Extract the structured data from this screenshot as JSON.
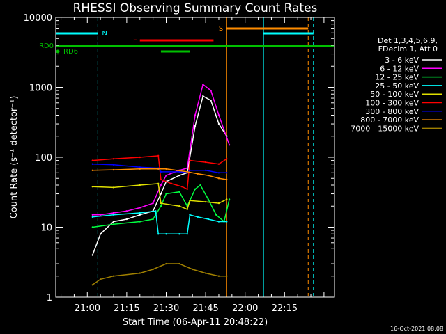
{
  "chart_data": {
    "type": "line",
    "title": "RHESSI Observing Summary Count Rates",
    "xlabel": "Start Time (06-Apr-11 20:48:22)",
    "ylabel": "Count Rate (s⁻¹ detector⁻¹)",
    "yscale": "log",
    "ylim": [
      1,
      10000
    ],
    "xlim": [
      "20:48",
      "22:34"
    ],
    "x_ticks": [
      "21:00",
      "21:15",
      "21:30",
      "21:45",
      "22:00",
      "22:15"
    ],
    "y_ticks": [
      "1",
      "10",
      "100",
      "1000",
      "10000"
    ],
    "legend_header": [
      "Det 1,3,4,5,6,9,",
      "FDecim 1, Att 0"
    ],
    "legend_position": "right",
    "footer": "16-Oct-2021 08:08",
    "series": [
      {
        "name": "3 - 6 keV",
        "color": "#ffffff",
        "x": [
          "21:02",
          "21:05",
          "21:10",
          "21:15",
          "21:20",
          "21:25",
          "21:28",
          "21:30",
          "21:35",
          "21:38",
          "21:41",
          "21:44",
          "21:47",
          "21:50",
          "21:53"
        ],
        "y": [
          4,
          8,
          12,
          13,
          15,
          17,
          30,
          45,
          55,
          60,
          280,
          750,
          650,
          300,
          200
        ]
      },
      {
        "name": "6 - 12 keV",
        "color": "#ff00ff",
        "x": [
          "21:02",
          "21:05",
          "21:10",
          "21:15",
          "21:20",
          "21:25",
          "21:28",
          "21:30",
          "21:35",
          "21:38",
          "21:41",
          "21:44",
          "21:47",
          "21:50",
          "21:54"
        ],
        "y": [
          15,
          15,
          16,
          17,
          19,
          22,
          40,
          55,
          65,
          70,
          400,
          1100,
          900,
          400,
          150
        ]
      },
      {
        "name": "12 - 25 keV",
        "color": "#00ff40",
        "x": [
          "21:02",
          "21:10",
          "21:20",
          "21:25",
          "21:28",
          "21:30",
          "21:35",
          "21:38",
          "21:41",
          "21:43",
          "21:46",
          "21:49",
          "21:52",
          "21:54"
        ],
        "y": [
          10,
          11,
          12,
          13,
          20,
          30,
          32,
          20,
          35,
          40,
          25,
          15,
          12,
          25
        ]
      },
      {
        "name": "25 - 50 keV",
        "color": "#00ffff",
        "x": [
          "21:02",
          "21:10",
          "21:20",
          "21:26",
          "21:27",
          "21:30",
          "21:35",
          "21:38",
          "21:39",
          "21:42",
          "21:46",
          "21:50",
          "21:53"
        ],
        "y": [
          14,
          15,
          16,
          17,
          8,
          8,
          8,
          8,
          15,
          14,
          13,
          12,
          12
        ]
      },
      {
        "name": "50 - 100 keV",
        "color": "#e0e000",
        "x": [
          "21:02",
          "21:10",
          "21:20",
          "21:27",
          "21:28",
          "21:35",
          "21:38",
          "21:39",
          "21:45",
          "21:50",
          "21:53"
        ],
        "y": [
          38,
          37,
          40,
          42,
          22,
          20,
          18,
          24,
          23,
          22,
          25
        ]
      },
      {
        "name": "100 - 300 keV",
        "color": "#ff0000",
        "x": [
          "21:02",
          "21:10",
          "21:20",
          "21:27",
          "21:28",
          "21:32",
          "21:36",
          "21:38",
          "21:39",
          "21:45",
          "21:50",
          "21:53"
        ],
        "y": [
          90,
          95,
          100,
          105,
          48,
          42,
          38,
          35,
          90,
          85,
          80,
          95
        ]
      },
      {
        "name": "300 - 800 keV",
        "color": "#0000ff",
        "x": [
          "21:02",
          "21:10",
          "21:20",
          "21:27",
          "21:28",
          "21:35",
          "21:38",
          "21:39",
          "21:45",
          "21:50",
          "21:53"
        ],
        "y": [
          80,
          78,
          72,
          70,
          62,
          62,
          60,
          65,
          65,
          60,
          60
        ]
      },
      {
        "name": "800 - 7000 keV",
        "color": "#ff8c00",
        "x": [
          "21:02",
          "21:10",
          "21:20",
          "21:27",
          "21:30",
          "21:38",
          "21:42",
          "21:46",
          "21:50",
          "21:53"
        ],
        "y": [
          65,
          66,
          68,
          68,
          68,
          62,
          58,
          55,
          50,
          48
        ]
      },
      {
        "name": "7000 - 15000 keV",
        "color": "#a08000",
        "x": [
          "21:02",
          "21:05",
          "21:10",
          "21:20",
          "21:25",
          "21:30",
          "21:35",
          "21:40",
          "21:45",
          "21:50",
          "21:53"
        ],
        "y": [
          1.5,
          1.8,
          2.0,
          2.2,
          2.5,
          3.0,
          3.0,
          2.5,
          2.2,
          2.0,
          2.0
        ]
      }
    ],
    "annotations": [
      {
        "label": "N",
        "color": "#00ffff"
      },
      {
        "label": "F",
        "color": "#ff0000"
      },
      {
        "label": "S",
        "color": "#ff8c00"
      },
      {
        "label": "RD0",
        "color": "#00c000"
      },
      {
        "label": "RD6",
        "color": "#00c000"
      }
    ]
  }
}
